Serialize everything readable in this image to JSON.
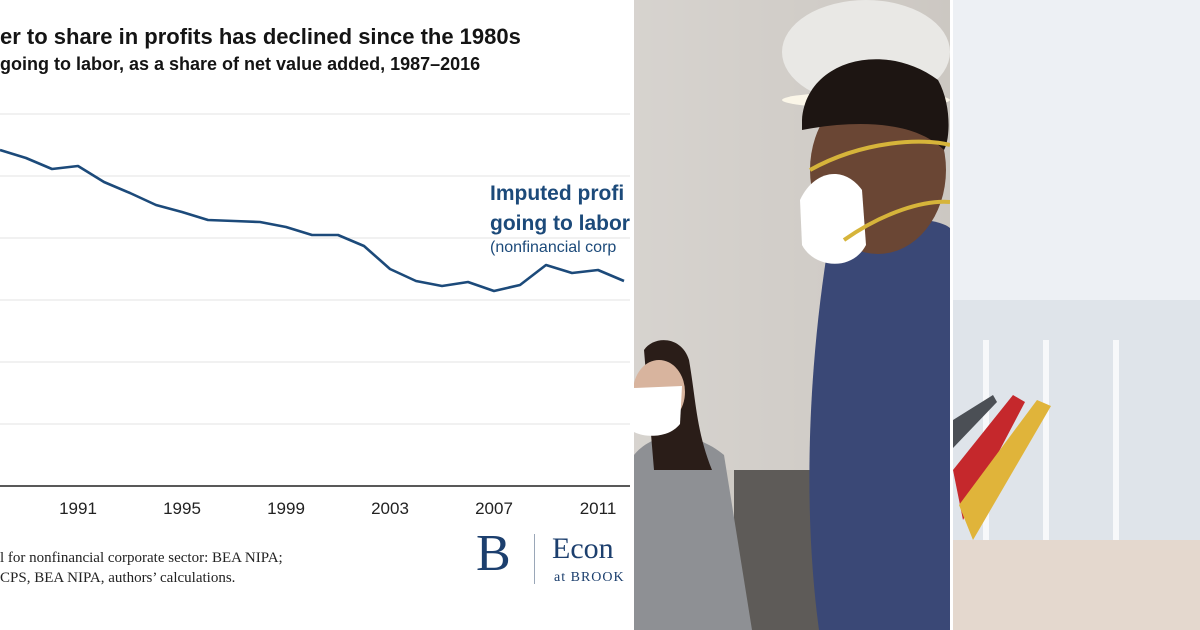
{
  "chart_data": {
    "type": "line",
    "title": "er to share in profits has declined since the 1980s",
    "subtitle": "going to labor, as a share of net value added, 1987–2016",
    "x_ticks": [
      "1991",
      "1995",
      "1999",
      "2003",
      "2007",
      "2011"
    ],
    "xlim": [
      1988,
      2012
    ],
    "grid": true,
    "series": [
      {
        "annotation": [
          "Imputed profi",
          "going to labor",
          "(nonfinancial corp"
        ],
        "x": [
          1988,
          1989,
          1990,
          1991,
          1992,
          1993,
          1994,
          1995,
          1996,
          1997,
          1998,
          1999,
          2000,
          2001,
          2002,
          2003,
          2004,
          2005,
          2006,
          2007,
          2008,
          2009,
          2010,
          2011,
          2012
        ],
        "y": [
          150,
          142,
          131,
          134,
          118,
          107,
          95,
          88,
          80,
          79,
          78,
          73,
          65,
          65,
          54,
          31,
          19,
          14,
          18,
          9,
          15,
          35,
          27,
          30,
          19
        ]
      }
    ],
    "source_lines": [
      "l for nonfinancial corporate sector: BEA NIPA;",
      "CPS, BEA NIPA, authors’ calculations."
    ]
  },
  "logo": {
    "letter": "B",
    "name": "Econ",
    "sub": "at BROOK"
  },
  "colors": {
    "line": "#1c4a7a",
    "grid": "#e3e3e3",
    "axis": "#222222"
  }
}
